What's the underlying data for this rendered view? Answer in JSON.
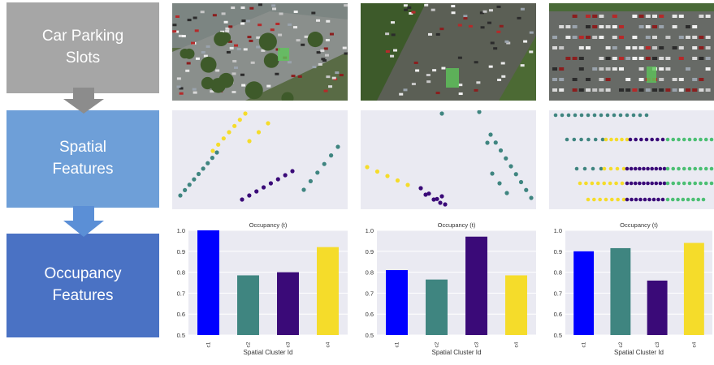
{
  "stages": [
    {
      "line1": "Car Parking",
      "line2": "Slots"
    },
    {
      "line1": "Spatial",
      "line2": "Features"
    },
    {
      "line1": "Occupancy",
      "line2": "Features"
    }
  ],
  "colors": {
    "arrow": "#8c8c8c",
    "arrow_blue": "#5b8fd6",
    "cluster_blue": "#0000ff",
    "cluster_teal": "#3f8580",
    "cluster_purple": "#3a0a78",
    "cluster_yellow": "#f5dc2a",
    "scatter_bg": "#eaeaf2"
  },
  "chart_data": [
    {
      "type": "bar",
      "title": "Occupancy (t)",
      "xlabel": "Spatial Cluster Id",
      "categories": [
        "c1",
        "c2",
        "c3",
        "c4"
      ],
      "values": [
        1.0,
        0.785,
        0.8,
        0.92
      ],
      "ylim": [
        0.5,
        1.0
      ],
      "yticks": [
        "0.5",
        "0.6",
        "0.7",
        "0.8",
        "0.9",
        "1.0"
      ]
    },
    {
      "type": "bar",
      "title": "Occupancy (t)",
      "xlabel": "Spatial Cluster Id",
      "categories": [
        "c1",
        "c2",
        "c3",
        "c4"
      ],
      "values": [
        0.81,
        0.765,
        0.97,
        0.785
      ],
      "ylim": [
        0.5,
        1.0
      ],
      "yticks": [
        "0.5",
        "0.6",
        "0.7",
        "0.8",
        "0.9",
        "1.0"
      ]
    },
    {
      "type": "bar",
      "title": "Occupancy (t)",
      "xlabel": "Spatial Cluster Id",
      "categories": [
        "c1",
        "c2",
        "c3",
        "c4"
      ],
      "values": [
        0.9,
        0.915,
        0.76,
        0.94
      ],
      "ylim": [
        0.5,
        1.0
      ],
      "yticks": [
        "0.5",
        "0.6",
        "0.7",
        "0.8",
        "0.9",
        "1.0"
      ]
    }
  ]
}
